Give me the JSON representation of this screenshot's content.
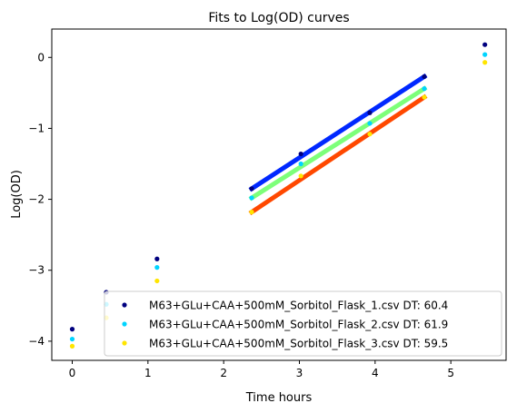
{
  "chart_data": {
    "type": "scatter",
    "title": "Fits to Log(OD) curves",
    "xlabel": "Time hours",
    "ylabel": "Log(OD)",
    "xlim": [
      -0.27,
      5.73
    ],
    "ylim": [
      -4.27,
      0.4
    ],
    "xticks": [
      0,
      1,
      2,
      3,
      4,
      5
    ],
    "xtick_labels": [
      "0",
      "1",
      "2",
      "3",
      "4",
      "5"
    ],
    "yticks": [
      -4,
      -3,
      -2,
      -1,
      0
    ],
    "ytick_labels": [
      "−4",
      "−3",
      "−2",
      "−1",
      "0"
    ],
    "grid": false,
    "legend_position": "lower-right",
    "series": [
      {
        "name": "M63+GLu+CAA+500mM_Sorbitol_Flask_1.csv DT: 60.4",
        "color": "#00007f",
        "points": [
          [
            0,
            -3.83
          ],
          [
            0.45,
            -3.31
          ],
          [
            1.12,
            -2.84
          ],
          [
            2.37,
            -1.85
          ],
          [
            3.02,
            -1.36
          ],
          [
            3.93,
            -0.78
          ],
          [
            4.65,
            -0.27
          ],
          [
            5.45,
            0.18
          ]
        ],
        "fit": {
          "color": "#0028ff",
          "x": [
            2.37,
            4.65
          ],
          "y": [
            -1.85,
            -0.27
          ]
        }
      },
      {
        "name": "M63+GLu+CAA+500mM_Sorbitol_Flask_2.csv DT: 61.9",
        "color": "#00d4ff",
        "points": [
          [
            0,
            -3.97
          ],
          [
            0.45,
            -3.48
          ],
          [
            1.12,
            -2.96
          ],
          [
            2.37,
            -1.98
          ],
          [
            3.02,
            -1.5
          ],
          [
            3.93,
            -0.93
          ],
          [
            4.65,
            -0.44
          ],
          [
            5.45,
            0.04
          ]
        ],
        "fit": {
          "color": "#7dff7a",
          "x": [
            2.37,
            4.65
          ],
          "y": [
            -1.98,
            -0.44
          ]
        }
      },
      {
        "name": "M63+GLu+CAA+500mM_Sorbitol_Flask_3.csv DT: 59.5",
        "color": "#ffe500",
        "points": [
          [
            0,
            -4.07
          ],
          [
            0.45,
            -3.67
          ],
          [
            1.12,
            -3.15
          ],
          [
            2.37,
            -2.18
          ],
          [
            3.02,
            -1.67
          ],
          [
            3.93,
            -1.08
          ],
          [
            4.65,
            -0.56
          ],
          [
            5.45,
            -0.07
          ]
        ],
        "fit": {
          "color": "#ff4800",
          "x": [
            2.37,
            4.65
          ],
          "y": [
            -2.18,
            -0.56
          ]
        }
      }
    ]
  }
}
